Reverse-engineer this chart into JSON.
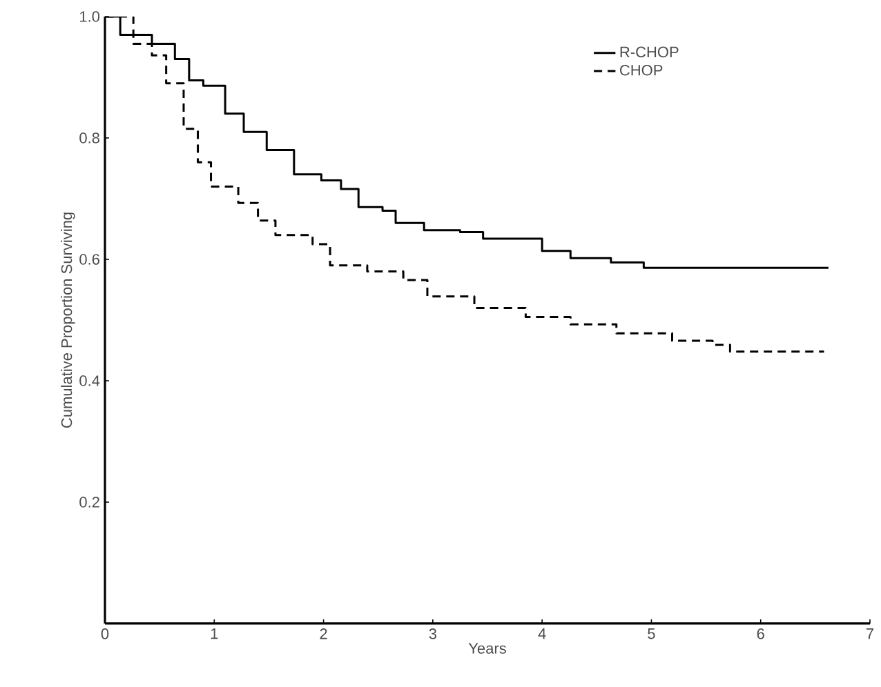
{
  "chart_data": {
    "type": "step",
    "xlabel": "Years",
    "ylabel": "Cumulative Proportion Surviving",
    "xlim": [
      0,
      7
    ],
    "ylim": [
      0,
      1
    ],
    "xticks": [
      0,
      1,
      2,
      3,
      4,
      5,
      6,
      7
    ],
    "yticks": [
      0.2,
      0.4,
      0.6,
      0.8,
      {
        "value": 1,
        "label": "1.0"
      }
    ],
    "legend": "top right",
    "grid": false,
    "marker": "none",
    "series": [
      {
        "name": "R-CHOP",
        "color": "#000000",
        "line_style": "solid",
        "x": [
          0,
          0.14,
          0.43,
          0.64,
          0.77,
          0.9,
          1.1,
          1.27,
          1.48,
          1.73,
          1.98,
          2.16,
          2.32,
          2.54,
          2.66,
          2.92,
          3.25,
          3.46,
          3.88,
          4.0,
          4.26,
          4.63,
          4.93,
          6.62
        ],
        "values": [
          1.0,
          0.97,
          0.955,
          0.93,
          0.895,
          0.886,
          0.84,
          0.81,
          0.78,
          0.74,
          0.73,
          0.716,
          0.686,
          0.68,
          0.66,
          0.648,
          0.645,
          0.634,
          0.634,
          0.614,
          0.602,
          0.595,
          0.586,
          0.586
        ]
      },
      {
        "name": "CHOP",
        "color": "#000000",
        "line_style": "dashed",
        "x": [
          0,
          0.26,
          0.43,
          0.56,
          0.72,
          0.85,
          0.97,
          1.22,
          1.4,
          1.56,
          1.9,
          2.06,
          2.4,
          2.73,
          2.95,
          3.38,
          3.85,
          4.26,
          4.68,
          5.19,
          5.56,
          5.72,
          6.58
        ],
        "values": [
          1.0,
          0.955,
          0.936,
          0.89,
          0.815,
          0.76,
          0.72,
          0.693,
          0.664,
          0.64,
          0.625,
          0.59,
          0.58,
          0.566,
          0.539,
          0.52,
          0.505,
          0.493,
          0.478,
          0.466,
          0.459,
          0.448,
          0.448
        ]
      }
    ]
  }
}
